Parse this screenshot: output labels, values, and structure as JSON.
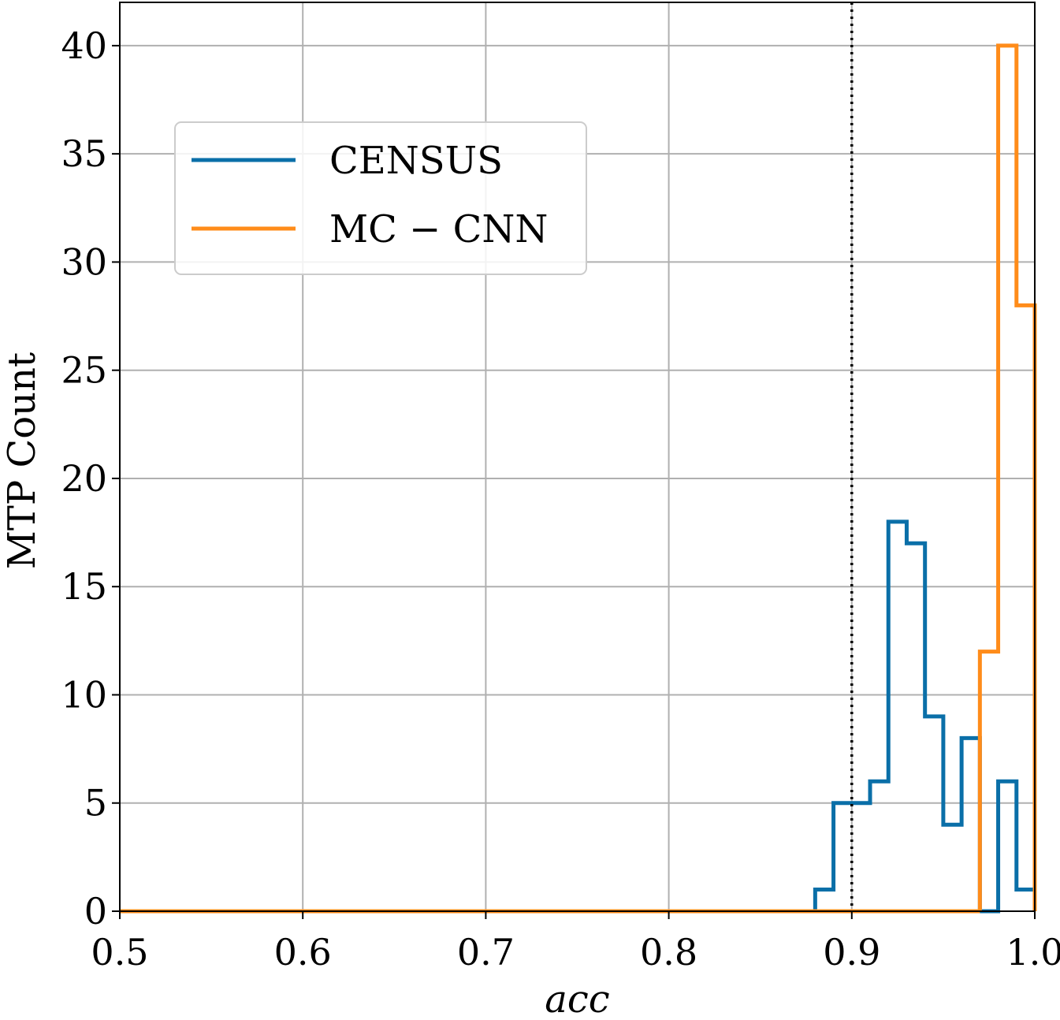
{
  "chart_data": {
    "type": "histogram-step",
    "xlabel": "acc",
    "ylabel": "MTP Count",
    "xlim": [
      0.5,
      1.0
    ],
    "ylim": [
      0,
      42
    ],
    "x_ticks": [
      "0.5",
      "0.6",
      "0.7",
      "0.8",
      "0.9",
      "1.0"
    ],
    "y_ticks": [
      "0",
      "5",
      "10",
      "15",
      "20",
      "25",
      "30",
      "35",
      "40"
    ],
    "x_tick_values": [
      0.5,
      0.6,
      0.7,
      0.8,
      0.9,
      1.0
    ],
    "y_tick_values": [
      0,
      5,
      10,
      15,
      20,
      25,
      30,
      35,
      40
    ],
    "grid": true,
    "legend_position": "upper-left",
    "threshold_line": {
      "x": 0.9,
      "style": "dotted"
    },
    "series": [
      {
        "name": "CENSUS",
        "color": "#0a6fa8",
        "bins": [
          {
            "x0": 0.88,
            "x1": 0.89,
            "count": 1
          },
          {
            "x0": 0.89,
            "x1": 0.9,
            "count": 5
          },
          {
            "x0": 0.9,
            "x1": 0.91,
            "count": 5
          },
          {
            "x0": 0.91,
            "x1": 0.92,
            "count": 6
          },
          {
            "x0": 0.92,
            "x1": 0.93,
            "count": 18
          },
          {
            "x0": 0.93,
            "x1": 0.94,
            "count": 17
          },
          {
            "x0": 0.94,
            "x1": 0.95,
            "count": 9
          },
          {
            "x0": 0.95,
            "x1": 0.96,
            "count": 4
          },
          {
            "x0": 0.96,
            "x1": 0.97,
            "count": 8
          },
          {
            "x0": 0.97,
            "x1": 0.98,
            "count": 0
          },
          {
            "x0": 0.98,
            "x1": 0.99,
            "count": 6
          },
          {
            "x0": 0.99,
            "x1": 1.0,
            "count": 1
          }
        ]
      },
      {
        "name": "MC − CNN",
        "color": "#ff8c1a",
        "bins": [
          {
            "x0": 0.97,
            "x1": 0.98,
            "count": 12
          },
          {
            "x0": 0.98,
            "x1": 0.99,
            "count": 40
          },
          {
            "x0": 0.99,
            "x1": 1.0,
            "count": 28
          }
        ]
      }
    ]
  }
}
